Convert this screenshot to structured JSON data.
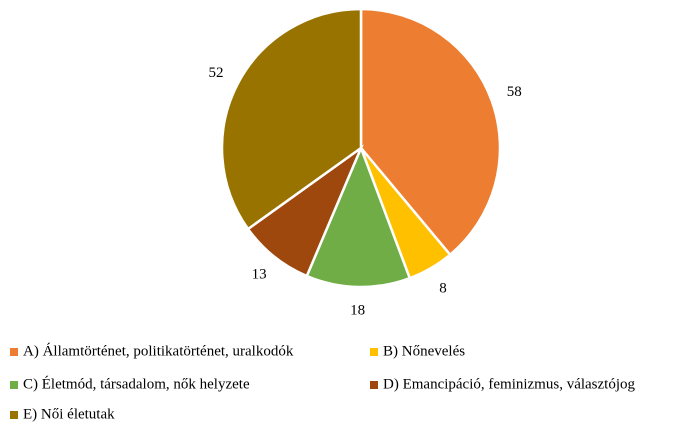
{
  "chart_data": {
    "type": "pie",
    "categories": [
      "A) Államtörténet, politikatörténet, uralkodók",
      "B) Nőnevelés",
      "C) Életmód, társadalom, nők helyzete",
      "D) Emancipáció, feminizmus, választójog",
      "E) Női életutak"
    ],
    "values": [
      58,
      8,
      18,
      13,
      52
    ],
    "colors": [
      "#ED7D31",
      "#FFC000",
      "#70AD47",
      "#9E480E",
      "#997300"
    ],
    "legend": "bottom"
  }
}
